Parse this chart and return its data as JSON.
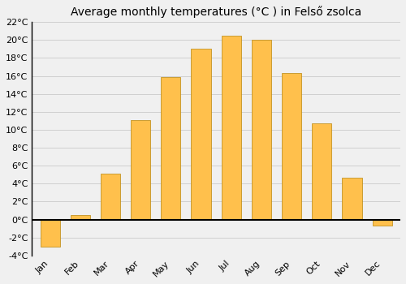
{
  "months": [
    "Jan",
    "Feb",
    "Mar",
    "Apr",
    "May",
    "Jun",
    "Jul",
    "Aug",
    "Sep",
    "Oct",
    "Nov",
    "Dec"
  ],
  "values": [
    -3.0,
    0.5,
    5.1,
    11.1,
    15.9,
    19.0,
    20.5,
    20.0,
    16.3,
    10.7,
    4.7,
    -0.7
  ],
  "bar_color": "#FFC04C",
  "bar_edge_color": "#B8860B",
  "title": "Average monthly temperatures (°C ) in Felső zsolca",
  "ylim": [
    -4,
    22
  ],
  "yticks": [
    -4,
    -2,
    0,
    2,
    4,
    6,
    8,
    10,
    12,
    14,
    16,
    18,
    20,
    22
  ],
  "background_color": "#f0f0f0",
  "grid_color": "#d0d0d0",
  "zero_line_color": "#000000",
  "title_fontsize": 10,
  "tick_fontsize": 8,
  "bar_width": 0.65
}
